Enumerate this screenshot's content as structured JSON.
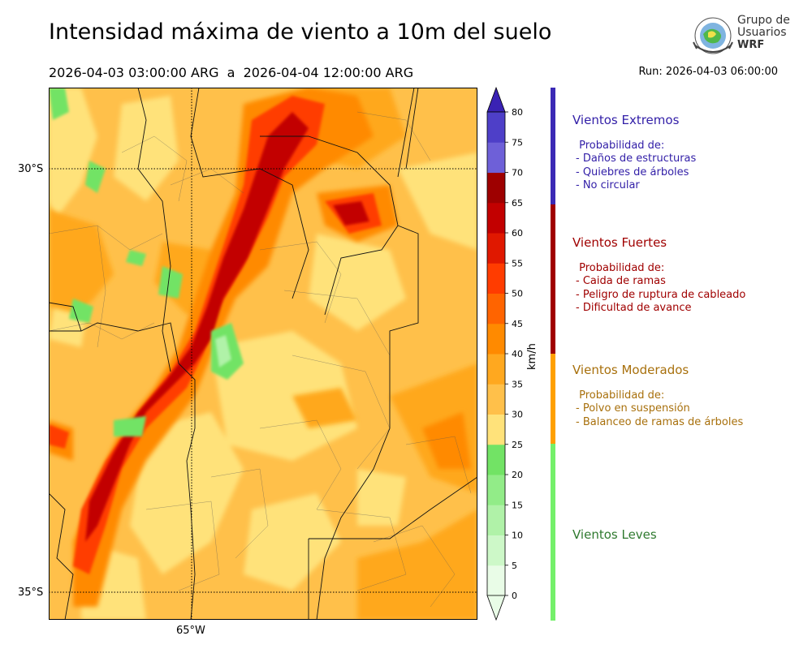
{
  "header": {
    "title": "Intensidad máxima de viento a 10m del suelo",
    "period": "2026-04-03 03:00:00 ARG  a  2026-04-04 12:00:00 ARG",
    "run": "Run: 2026-04-03 06:00:00"
  },
  "logo": {
    "line1": "Grupo de",
    "line2": "Usuarios",
    "line3": "WRF"
  },
  "map": {
    "lat_labels": [
      "30°S",
      "35°S"
    ],
    "lon_labels": [
      "65°W"
    ],
    "gridlines": "dotted"
  },
  "colorbar": {
    "unit": "km/h",
    "ticks": [
      "0",
      "5",
      "10",
      "15",
      "20",
      "25",
      "30",
      "35",
      "40",
      "45",
      "50",
      "55",
      "60",
      "65",
      "70",
      "75",
      "80"
    ],
    "colors": [
      "#e9fce7",
      "#cdf8c8",
      "#b0f2a8",
      "#92ec88",
      "#72e365",
      "#ffe27a",
      "#ffc04a",
      "#ffa81f",
      "#ff8a00",
      "#ff6400",
      "#ff3c00",
      "#e01800",
      "#c20000",
      "#9e0000",
      "#6e60d8",
      "#4e3fc8",
      "#3a22b4"
    ]
  },
  "categories": [
    {
      "label": "Vientos Extremos",
      "color": "#3320a8",
      "desc": " Probabilidad de:\n- Daños de estructuras\n- Quiebres de árboles\n- No circular"
    },
    {
      "label": "Vientos Fuertes",
      "color": "#a00000",
      "desc": " Probabilidad de:\n- Caida de ramas\n- Peligro de ruptura de cableado\n- Dificultad de avance"
    },
    {
      "label": "Vientos Moderados",
      "color": "#a8700c",
      "desc": " Probabilidad de:\n- Polvo en suspensión\n- Balanceo de ramas de árboles"
    },
    {
      "label": "Vientos Leves",
      "color": "#2f7a2f",
      "desc": ""
    }
  ],
  "category_bar_colors": [
    "#3b2ab5",
    "#a00000",
    "#ffa000",
    "#74f06a"
  ]
}
